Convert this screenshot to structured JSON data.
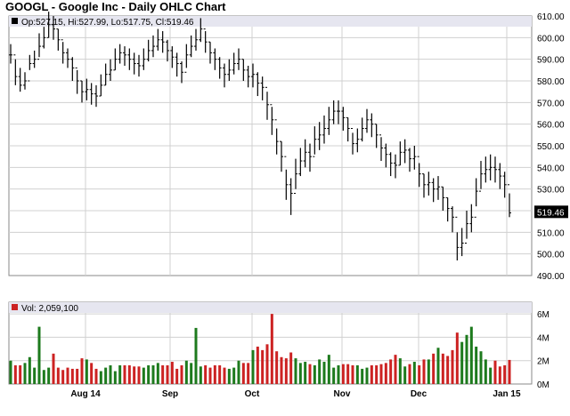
{
  "chart_data": [
    {
      "type": "ohlc",
      "title": "GOOGL - Google Inc - Daily OHLC Chart",
      "legend": {
        "label": "Op:527.15, Hi:527.99, Lo:517.75, Cl:519.46",
        "position": "top-left"
      },
      "ylim": [
        490,
        610
      ],
      "yticks": [
        "610.00",
        "600.00",
        "590.00",
        "580.00",
        "570.00",
        "560.00",
        "550.00",
        "540.00",
        "530.00",
        "520.00",
        "510.00",
        "500.00",
        "490.00"
      ],
      "last_value": "519.46",
      "xticks": [
        "Aug 14",
        "Sep",
        "Oct",
        "Nov",
        "Dec",
        "Jan 15"
      ],
      "grid": true,
      "closes": [
        592,
        582,
        578,
        580,
        588,
        590,
        596,
        600,
        606,
        604,
        599,
        593,
        590,
        586,
        580,
        575,
        576,
        574,
        573,
        578,
        583,
        585,
        590,
        593,
        592,
        590,
        588,
        587,
        590,
        594,
        596,
        599,
        598,
        594,
        591,
        588,
        584,
        592,
        596,
        599,
        604,
        598,
        593,
        590,
        586,
        583,
        585,
        588,
        590,
        585,
        582,
        583,
        579,
        577,
        569,
        562,
        552,
        545,
        532,
        528,
        537,
        543,
        547,
        545,
        553,
        555,
        558,
        562,
        566,
        566,
        563,
        558,
        551,
        553,
        558,
        562,
        560,
        555,
        549,
        546,
        542,
        541,
        547,
        548,
        544,
        545,
        537,
        532,
        533,
        530,
        531,
        526,
        521,
        517,
        503,
        505,
        514,
        517,
        529,
        537,
        539,
        540,
        539,
        536,
        532,
        519
      ],
      "ranges": [
        [
          588,
          597
        ],
        [
          578,
          590
        ],
        [
          575,
          586
        ],
        [
          576,
          584
        ],
        [
          585,
          592
        ],
        [
          586,
          594
        ],
        [
          591,
          602
        ],
        [
          595,
          605
        ],
        [
          600,
          612
        ],
        [
          599,
          610
        ],
        [
          594,
          604
        ],
        [
          588,
          598
        ],
        [
          586,
          595
        ],
        [
          580,
          591
        ],
        [
          574,
          585
        ],
        [
          570,
          580
        ],
        [
          571,
          581
        ],
        [
          569,
          579
        ],
        [
          568,
          578
        ],
        [
          573,
          583
        ],
        [
          578,
          588
        ],
        [
          580,
          590
        ],
        [
          585,
          595
        ],
        [
          588,
          597
        ],
        [
          587,
          596
        ],
        [
          585,
          595
        ],
        [
          583,
          593
        ],
        [
          582,
          592
        ],
        [
          585,
          595
        ],
        [
          589,
          599
        ],
        [
          591,
          601
        ],
        [
          594,
          604
        ],
        [
          593,
          603
        ],
        [
          589,
          599
        ],
        [
          586,
          596
        ],
        [
          582,
          593
        ],
        [
          579,
          589
        ],
        [
          586,
          597
        ],
        [
          591,
          601
        ],
        [
          594,
          604
        ],
        [
          598,
          609
        ],
        [
          593,
          603
        ],
        [
          588,
          598
        ],
        [
          585,
          595
        ],
        [
          581,
          591
        ],
        [
          577,
          588
        ],
        [
          580,
          590
        ],
        [
          583,
          593
        ],
        [
          585,
          595
        ],
        [
          580,
          590
        ],
        [
          577,
          587
        ],
        [
          577,
          588
        ],
        [
          573,
          584
        ],
        [
          571,
          582
        ],
        [
          562,
          575
        ],
        [
          555,
          568
        ],
        [
          546,
          558
        ],
        [
          538,
          552
        ],
        [
          525,
          539
        ],
        [
          518,
          535
        ],
        [
          530,
          544
        ],
        [
          536,
          549
        ],
        [
          540,
          553
        ],
        [
          538,
          551
        ],
        [
          546,
          559
        ],
        [
          548,
          561
        ],
        [
          551,
          564
        ],
        [
          555,
          568
        ],
        [
          560,
          571
        ],
        [
          560,
          571
        ],
        [
          557,
          568
        ],
        [
          552,
          563
        ],
        [
          546,
          556
        ],
        [
          547,
          558
        ],
        [
          552,
          563
        ],
        [
          556,
          567
        ],
        [
          554,
          565
        ],
        [
          549,
          560
        ],
        [
          543,
          554
        ],
        [
          540,
          551
        ],
        [
          536,
          547
        ],
        [
          535,
          546
        ],
        [
          541,
          552
        ],
        [
          542,
          553
        ],
        [
          538,
          549
        ],
        [
          539,
          550
        ],
        [
          531,
          542
        ],
        [
          526,
          537
        ],
        [
          527,
          538
        ],
        [
          524,
          535
        ],
        [
          525,
          536
        ],
        [
          520,
          531
        ],
        [
          515,
          526
        ],
        [
          510,
          522
        ],
        [
          497,
          510
        ],
        [
          499,
          512
        ],
        [
          507,
          520
        ],
        [
          510,
          523
        ],
        [
          522,
          535
        ],
        [
          530,
          543
        ],
        [
          533,
          545
        ],
        [
          534,
          546
        ],
        [
          533,
          545
        ],
        [
          530,
          542
        ],
        [
          526,
          538
        ],
        [
          517,
          528
        ]
      ],
      "volume": {
        "label": "Vol: 2,059,100",
        "ylim": [
          0,
          7000000
        ],
        "yticks": [
          "6M",
          "4M",
          "2M",
          "0M"
        ],
        "values_millions": [
          2.0,
          1.6,
          1.6,
          1.8,
          2.3,
          1.4,
          4.9,
          1.2,
          1.4,
          2.6,
          1.4,
          1.2,
          1.4,
          1.3,
          1.3,
          2.2,
          2.1,
          1.8,
          1.3,
          1.1,
          1.4,
          1.6,
          1.1,
          1.6,
          1.6,
          1.6,
          1.5,
          1.5,
          1.4,
          1.6,
          1.6,
          1.8,
          1.6,
          1.6,
          1.9,
          1.3,
          1.6,
          2.0,
          1.8,
          4.8,
          1.5,
          1.6,
          1.4,
          1.6,
          1.6,
          1.4,
          1.3,
          1.4,
          2.0,
          1.8,
          1.8,
          2.9,
          3.2,
          2.9,
          3.4,
          6.0,
          2.8,
          2.3,
          2.2,
          2.7,
          2.2,
          1.8,
          1.9,
          1.7,
          1.6,
          2.1,
          1.9,
          2.5,
          1.4,
          1.6,
          1.7,
          1.7,
          1.6,
          1.6,
          1.3,
          1.4,
          1.6,
          1.6,
          1.7,
          1.8,
          2.1,
          2.5,
          2.2,
          1.5,
          1.7,
          1.9,
          1.6,
          2.1,
          2.1,
          2.6,
          3.1,
          2.6,
          2.4,
          2.9,
          4.4,
          3.6,
          4.2,
          4.9,
          3.2,
          2.8,
          2.1,
          1.4,
          2.0,
          1.5,
          1.6,
          2.06
        ]
      },
      "colors": {
        "up": "#1d7a1d",
        "down": "#cc2222",
        "panel_header": "#e6e6f0",
        "grid": "#d0d0d0",
        "bar": "#000000",
        "last_box": "#000000"
      }
    }
  ]
}
